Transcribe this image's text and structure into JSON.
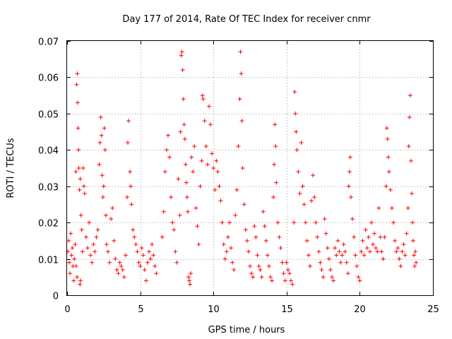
{
  "chart_data": {
    "type": "scatter",
    "title": "Day 177 of 2014, Rate Of TEC Index for receiver cnmr",
    "xlabel": "GPS time / hours",
    "ylabel": "ROTI / TECUs",
    "xlim": [
      0,
      25
    ],
    "ylim": [
      0,
      0.07
    ],
    "xticks": [
      "0",
      "5",
      "10",
      "15",
      "20",
      "25"
    ],
    "yticks": [
      "0",
      "0.01",
      "0.02",
      "0.03",
      "0.04",
      "0.05",
      "0.06",
      "0.07"
    ],
    "grid": true,
    "marker": "+",
    "color": "#ff0000",
    "series": [
      {
        "name": "ROTI",
        "points": [
          [
            0.05,
            0.012
          ],
          [
            0.1,
            0.015
          ],
          [
            0.15,
            0.009
          ],
          [
            0.2,
            0.006
          ],
          [
            0.25,
            0.017
          ],
          [
            0.3,
            0.011
          ],
          [
            0.35,
            0.013
          ],
          [
            0.4,
            0.008
          ],
          [
            0.45,
            0.004
          ],
          [
            0.5,
            0.01
          ],
          [
            0.55,
            0.014
          ],
          [
            0.6,
            0.034
          ],
          [
            0.65,
            0.058
          ],
          [
            0.7,
            0.061
          ],
          [
            0.72,
            0.053
          ],
          [
            0.75,
            0.046
          ],
          [
            0.78,
            0.04
          ],
          [
            0.8,
            0.035
          ],
          [
            0.85,
            0.029
          ],
          [
            0.9,
            0.032
          ],
          [
            0.95,
            0.022
          ],
          [
            1.0,
            0.018
          ],
          [
            1.05,
            0.012
          ],
          [
            0.62,
            0.008
          ],
          [
            0.68,
            0.005
          ],
          [
            0.88,
            0.003
          ],
          [
            0.92,
            0.004
          ],
          [
            1.1,
            0.035
          ],
          [
            1.15,
            0.03
          ],
          [
            1.2,
            0.028
          ],
          [
            1.3,
            0.016
          ],
          [
            1.4,
            0.013
          ],
          [
            1.5,
            0.02
          ],
          [
            1.6,
            0.011
          ],
          [
            1.7,
            0.009
          ],
          [
            1.8,
            0.014
          ],
          [
            1.9,
            0.012
          ],
          [
            2.0,
            0.016
          ],
          [
            2.1,
            0.018
          ],
          [
            2.2,
            0.036
          ],
          [
            2.25,
            0.042
          ],
          [
            2.3,
            0.049
          ],
          [
            2.35,
            0.044
          ],
          [
            2.4,
            0.033
          ],
          [
            2.45,
            0.027
          ],
          [
            2.5,
            0.03
          ],
          [
            2.55,
            0.046
          ],
          [
            2.6,
            0.04
          ],
          [
            2.65,
            0.022
          ],
          [
            2.7,
            0.014
          ],
          [
            2.8,
            0.012
          ],
          [
            2.9,
            0.009
          ],
          [
            3.0,
            0.021
          ],
          [
            3.1,
            0.024
          ],
          [
            3.2,
            0.015
          ],
          [
            3.3,
            0.01
          ],
          [
            3.4,
            0.007
          ],
          [
            3.5,
            0.006
          ],
          [
            3.6,
            0.009
          ],
          [
            3.7,
            0.008
          ],
          [
            3.8,
            0.007
          ],
          [
            3.9,
            0.005
          ],
          [
            4.0,
            0.011
          ],
          [
            4.1,
            0.027
          ],
          [
            4.15,
            0.042
          ],
          [
            4.2,
            0.048
          ],
          [
            4.3,
            0.034
          ],
          [
            4.35,
            0.03
          ],
          [
            4.4,
            0.025
          ],
          [
            4.5,
            0.018
          ],
          [
            4.6,
            0.016
          ],
          [
            4.7,
            0.014
          ],
          [
            4.8,
            0.012
          ],
          [
            4.9,
            0.009
          ],
          [
            5.0,
            0.008
          ],
          [
            5.1,
            0.013
          ],
          [
            5.2,
            0.011
          ],
          [
            5.3,
            0.007
          ],
          [
            5.4,
            0.004
          ],
          [
            5.5,
            0.009
          ],
          [
            5.6,
            0.012
          ],
          [
            5.7,
            0.01
          ],
          [
            5.8,
            0.014
          ],
          [
            5.9,
            0.011
          ],
          [
            6.0,
            0.008
          ],
          [
            6.1,
            0.006
          ],
          [
            6.5,
            0.016
          ],
          [
            6.6,
            0.023
          ],
          [
            6.7,
            0.034
          ],
          [
            6.8,
            0.04
          ],
          [
            6.9,
            0.044
          ],
          [
            7.0,
            0.038
          ],
          [
            7.1,
            0.027
          ],
          [
            7.2,
            0.02
          ],
          [
            7.3,
            0.018
          ],
          [
            7.4,
            0.012
          ],
          [
            7.5,
            0.009
          ],
          [
            7.6,
            0.032
          ],
          [
            7.7,
            0.022
          ],
          [
            7.75,
            0.045
          ],
          [
            7.8,
            0.066
          ],
          [
            7.85,
            0.067
          ],
          [
            7.9,
            0.062
          ],
          [
            7.95,
            0.054
          ],
          [
            8.0,
            0.047
          ],
          [
            8.05,
            0.043
          ],
          [
            8.1,
            0.036
          ],
          [
            8.15,
            0.031
          ],
          [
            8.2,
            0.027
          ],
          [
            8.25,
            0.023
          ],
          [
            8.3,
            0.005
          ],
          [
            8.35,
            0.004
          ],
          [
            8.4,
            0.003
          ],
          [
            8.45,
            0.006
          ],
          [
            8.5,
            0.038
          ],
          [
            8.6,
            0.034
          ],
          [
            8.7,
            0.041
          ],
          [
            8.8,
            0.024
          ],
          [
            8.9,
            0.019
          ],
          [
            9.0,
            0.014
          ],
          [
            9.1,
            0.03
          ],
          [
            9.2,
            0.037
          ],
          [
            9.25,
            0.055
          ],
          [
            9.3,
            0.054
          ],
          [
            9.4,
            0.048
          ],
          [
            9.5,
            0.041
          ],
          [
            9.6,
            0.036
          ],
          [
            9.7,
            0.052
          ],
          [
            9.8,
            0.047
          ],
          [
            9.9,
            0.039
          ],
          [
            10.0,
            0.035
          ],
          [
            10.1,
            0.029
          ],
          [
            10.2,
            0.037
          ],
          [
            10.3,
            0.034
          ],
          [
            10.4,
            0.03
          ],
          [
            10.5,
            0.026
          ],
          [
            10.6,
            0.02
          ],
          [
            10.7,
            0.014
          ],
          [
            10.8,
            0.01
          ],
          [
            10.9,
            0.012
          ],
          [
            11.0,
            0.016
          ],
          [
            11.1,
            0.02
          ],
          [
            11.2,
            0.013
          ],
          [
            11.3,
            0.009
          ],
          [
            11.4,
            0.007
          ],
          [
            11.5,
            0.022
          ],
          [
            11.6,
            0.029
          ],
          [
            11.7,
            0.041
          ],
          [
            11.8,
            0.054
          ],
          [
            11.85,
            0.067
          ],
          [
            11.9,
            0.061
          ],
          [
            11.95,
            0.048
          ],
          [
            12.0,
            0.035
          ],
          [
            12.1,
            0.025
          ],
          [
            12.2,
            0.018
          ],
          [
            12.3,
            0.015
          ],
          [
            12.4,
            0.012
          ],
          [
            12.5,
            0.008
          ],
          [
            12.6,
            0.006
          ],
          [
            12.7,
            0.005
          ],
          [
            12.8,
            0.019
          ],
          [
            12.9,
            0.016
          ],
          [
            13.0,
            0.011
          ],
          [
            13.1,
            0.008
          ],
          [
            13.2,
            0.007
          ],
          [
            13.3,
            0.005
          ],
          [
            13.4,
            0.023
          ],
          [
            13.5,
            0.019
          ],
          [
            13.6,
            0.015
          ],
          [
            13.7,
            0.011
          ],
          [
            13.8,
            0.008
          ],
          [
            13.9,
            0.005
          ],
          [
            14.0,
            0.004
          ],
          [
            14.1,
            0.027
          ],
          [
            14.15,
            0.036
          ],
          [
            14.2,
            0.047
          ],
          [
            14.25,
            0.041
          ],
          [
            14.3,
            0.031
          ],
          [
            14.4,
            0.02
          ],
          [
            14.5,
            0.016
          ],
          [
            14.6,
            0.013
          ],
          [
            14.7,
            0.009
          ],
          [
            14.8,
            0.006
          ],
          [
            14.9,
            0.004
          ],
          [
            15.0,
            0.009
          ],
          [
            15.1,
            0.007
          ],
          [
            15.2,
            0.006
          ],
          [
            15.3,
            0.004
          ],
          [
            15.4,
            0.003
          ],
          [
            15.5,
            0.02
          ],
          [
            15.55,
            0.056
          ],
          [
            15.6,
            0.05
          ],
          [
            15.65,
            0.045
          ],
          [
            15.7,
            0.04
          ],
          [
            15.8,
            0.034
          ],
          [
            15.9,
            0.028
          ],
          [
            16.0,
            0.042
          ],
          [
            16.1,
            0.03
          ],
          [
            16.2,
            0.025
          ],
          [
            16.3,
            0.02
          ],
          [
            16.4,
            0.015
          ],
          [
            16.5,
            0.011
          ],
          [
            16.6,
            0.008
          ],
          [
            16.7,
            0.026
          ],
          [
            16.8,
            0.033
          ],
          [
            16.9,
            0.027
          ],
          [
            17.0,
            0.02
          ],
          [
            17.1,
            0.016
          ],
          [
            17.2,
            0.012
          ],
          [
            17.3,
            0.009
          ],
          [
            17.4,
            0.007
          ],
          [
            17.5,
            0.005
          ],
          [
            17.6,
            0.021
          ],
          [
            17.7,
            0.017
          ],
          [
            17.8,
            0.013
          ],
          [
            17.9,
            0.01
          ],
          [
            18.0,
            0.007
          ],
          [
            18.1,
            0.005
          ],
          [
            18.2,
            0.004
          ],
          [
            18.3,
            0.013
          ],
          [
            18.4,
            0.011
          ],
          [
            18.5,
            0.015
          ],
          [
            18.6,
            0.012
          ],
          [
            18.7,
            0.009
          ],
          [
            18.8,
            0.011
          ],
          [
            18.9,
            0.014
          ],
          [
            19.0,
            0.012
          ],
          [
            19.1,
            0.009
          ],
          [
            19.2,
            0.006
          ],
          [
            19.25,
            0.03
          ],
          [
            19.3,
            0.034
          ],
          [
            19.35,
            0.038
          ],
          [
            19.4,
            0.027
          ],
          [
            19.5,
            0.021
          ],
          [
            19.6,
            0.016
          ],
          [
            19.7,
            0.011
          ],
          [
            19.8,
            0.008
          ],
          [
            19.9,
            0.005
          ],
          [
            20.0,
            0.004
          ],
          [
            20.1,
            0.012
          ],
          [
            20.2,
            0.015
          ],
          [
            20.3,
            0.011
          ],
          [
            20.4,
            0.018
          ],
          [
            20.5,
            0.013
          ],
          [
            20.6,
            0.016
          ],
          [
            20.7,
            0.012
          ],
          [
            20.8,
            0.02
          ],
          [
            20.9,
            0.014
          ],
          [
            21.0,
            0.017
          ],
          [
            21.1,
            0.013
          ],
          [
            21.2,
            0.012
          ],
          [
            21.3,
            0.024
          ],
          [
            21.4,
            0.016
          ],
          [
            21.5,
            0.012
          ],
          [
            21.6,
            0.01
          ],
          [
            21.7,
            0.016
          ],
          [
            21.8,
            0.03
          ],
          [
            21.85,
            0.046
          ],
          [
            21.9,
            0.043
          ],
          [
            21.95,
            0.038
          ],
          [
            22.0,
            0.034
          ],
          [
            22.1,
            0.029
          ],
          [
            22.2,
            0.024
          ],
          [
            22.3,
            0.02
          ],
          [
            22.4,
            0.015
          ],
          [
            22.5,
            0.012
          ],
          [
            22.6,
            0.013
          ],
          [
            22.7,
            0.01
          ],
          [
            22.8,
            0.008
          ],
          [
            22.9,
            0.012
          ],
          [
            23.0,
            0.014
          ],
          [
            23.1,
            0.011
          ],
          [
            23.2,
            0.017
          ],
          [
            23.3,
            0.024
          ],
          [
            23.35,
            0.041
          ],
          [
            23.4,
            0.049
          ],
          [
            23.45,
            0.055
          ],
          [
            23.5,
            0.037
          ],
          [
            23.55,
            0.028
          ],
          [
            23.6,
            0.02
          ],
          [
            23.65,
            0.015
          ],
          [
            23.7,
            0.011
          ],
          [
            23.75,
            0.008
          ],
          [
            23.8,
            0.012
          ],
          [
            23.85,
            0.009
          ]
        ]
      }
    ]
  }
}
